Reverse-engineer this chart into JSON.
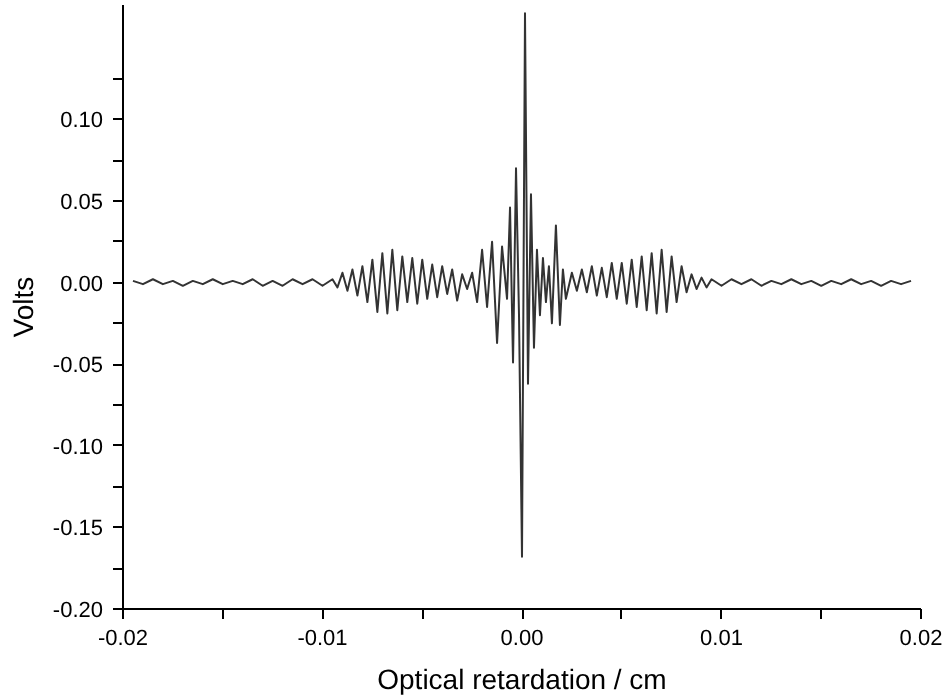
{
  "chart_data": {
    "type": "line",
    "xlabel": "Optical retardation / cm",
    "ylabel": "Volts",
    "xlim": [
      -0.02,
      0.02
    ],
    "ylim": [
      -0.2,
      0.17
    ],
    "xticks": [
      {
        "value": -0.02,
        "label": "-0.02"
      },
      {
        "value": -0.015,
        "label": null
      },
      {
        "value": -0.01,
        "label": "-0.01"
      },
      {
        "value": -0.005,
        "label": null
      },
      {
        "value": 0,
        "label": "0.00"
      },
      {
        "value": 0.005,
        "label": null
      },
      {
        "value": 0.01,
        "label": "0.01"
      },
      {
        "value": 0.015,
        "label": null
      },
      {
        "value": 0.02,
        "label": "0.02"
      }
    ],
    "yticks": [
      {
        "value": -0.2,
        "label": "-0.20"
      },
      {
        "value": -0.175,
        "label": null
      },
      {
        "value": -0.15,
        "label": "-0.15"
      },
      {
        "value": -0.125,
        "label": null
      },
      {
        "value": -0.1,
        "label": "-0.10"
      },
      {
        "value": -0.075,
        "label": null
      },
      {
        "value": -0.05,
        "label": "-0.05"
      },
      {
        "value": -0.025,
        "label": null
      },
      {
        "value": 0,
        "label": "0.00"
      },
      {
        "value": 0.025,
        "label": null
      },
      {
        "value": 0.05,
        "label": "0.05"
      },
      {
        "value": 0.075,
        "label": null
      },
      {
        "value": 0.1,
        "label": "0.10"
      },
      {
        "value": 0.125,
        "label": null
      }
    ],
    "grid": false,
    "series": [
      {
        "color": "#333333",
        "x": [
          -0.0195,
          -0.019,
          -0.0185,
          -0.018,
          -0.0175,
          -0.017,
          -0.0165,
          -0.016,
          -0.0155,
          -0.015,
          -0.0145,
          -0.014,
          -0.0135,
          -0.013,
          -0.0125,
          -0.012,
          -0.0115,
          -0.011,
          -0.0105,
          -0.01,
          -0.0095,
          -0.00925,
          -0.009,
          -0.00875,
          -0.0085,
          -0.00825,
          -0.008,
          -0.00775,
          -0.0075,
          -0.00725,
          -0.007,
          -0.00675,
          -0.0065,
          -0.00625,
          -0.006,
          -0.00575,
          -0.0055,
          -0.00525,
          -0.005,
          -0.00475,
          -0.0045,
          -0.00425,
          -0.004,
          -0.00375,
          -0.0035,
          -0.00325,
          -0.003,
          -0.00275,
          -0.0025,
          -0.00225,
          -0.002,
          -0.00175,
          -0.0015,
          -0.00125,
          -0.001,
          -0.00075,
          -0.0006,
          -0.00045,
          -0.0003,
          -0.00015,
          0.0,
          0.00015,
          0.0003,
          0.00045,
          0.0006,
          0.00075,
          0.0009,
          0.00105,
          0.0012,
          0.00135,
          0.0015,
          0.0017,
          0.0019,
          0.00205,
          0.0022,
          0.0025,
          0.00275,
          0.003,
          0.00325,
          0.0035,
          0.00375,
          0.004,
          0.00425,
          0.0045,
          0.00475,
          0.005,
          0.00525,
          0.0055,
          0.00575,
          0.006,
          0.00625,
          0.0065,
          0.00675,
          0.007,
          0.00725,
          0.0075,
          0.00775,
          0.008,
          0.00825,
          0.0085,
          0.00875,
          0.009,
          0.00925,
          0.0095,
          0.01,
          0.0105,
          0.011,
          0.0115,
          0.012,
          0.0125,
          0.013,
          0.0135,
          0.014,
          0.0145,
          0.015,
          0.0155,
          0.016,
          0.0165,
          0.017,
          0.0175,
          0.018,
          0.0185,
          0.019,
          0.0195
        ],
        "values": [
          0.001,
          -0.001,
          0.002,
          -0.001,
          0.001,
          -0.002,
          0.001,
          -0.001,
          0.002,
          -0.001,
          0.001,
          -0.001,
          0.002,
          -0.002,
          0.001,
          -0.002,
          0.002,
          -0.001,
          0.002,
          -0.002,
          0.002,
          -0.003,
          0.006,
          -0.005,
          0.008,
          -0.008,
          0.01,
          -0.012,
          0.014,
          -0.018,
          0.018,
          -0.019,
          0.02,
          -0.017,
          0.016,
          -0.012,
          0.015,
          -0.013,
          0.014,
          -0.01,
          0.011,
          -0.009,
          0.01,
          -0.007,
          0.008,
          -0.011,
          0.005,
          -0.004,
          0.006,
          -0.012,
          0.02,
          -0.015,
          0.025,
          -0.037,
          0.022,
          -0.01,
          0.046,
          -0.049,
          0.07,
          -0.02,
          -0.168,
          0.165,
          -0.062,
          0.054,
          -0.04,
          0.02,
          -0.02,
          0.015,
          -0.012,
          0.01,
          -0.025,
          0.035,
          -0.026,
          0.008,
          -0.01,
          0.006,
          -0.005,
          0.008,
          -0.006,
          0.01,
          -0.008,
          0.009,
          -0.009,
          0.012,
          -0.01,
          0.012,
          -0.013,
          0.014,
          -0.015,
          0.016,
          -0.017,
          0.018,
          -0.019,
          0.02,
          -0.018,
          0.016,
          -0.012,
          0.01,
          -0.006,
          0.005,
          -0.004,
          0.003,
          -0.003,
          0.002,
          -0.002,
          0.002,
          -0.001,
          0.002,
          -0.002,
          0.001,
          -0.001,
          0.002,
          -0.001,
          0.001,
          -0.002,
          0.001,
          -0.001,
          0.002,
          -0.001,
          0.001,
          -0.002,
          0.001,
          -0.001,
          0.001
        ]
      }
    ]
  }
}
